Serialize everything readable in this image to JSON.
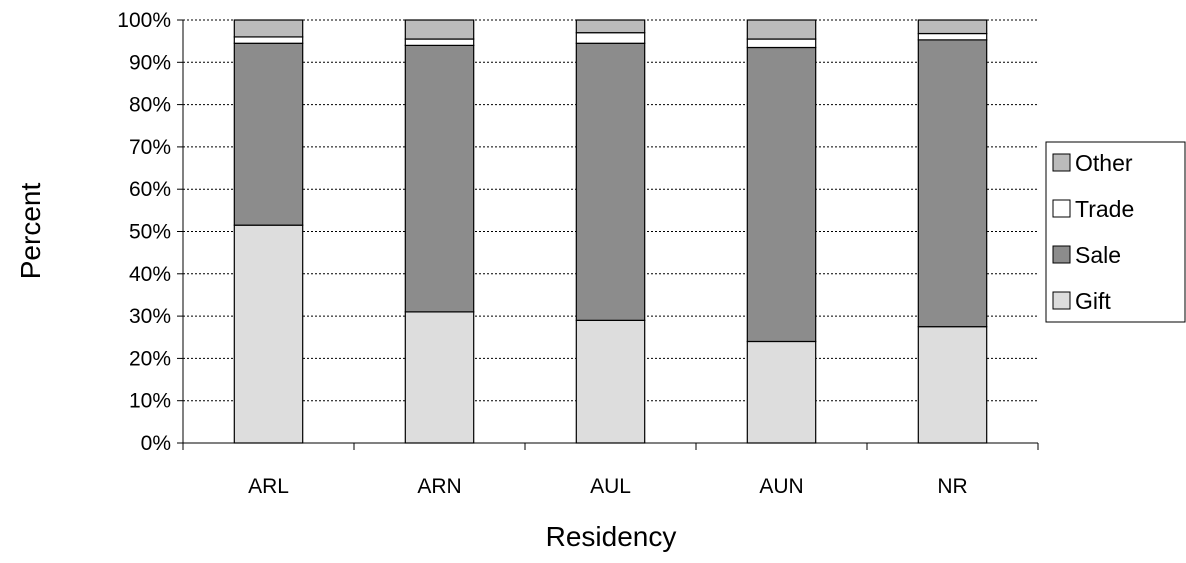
{
  "chart_data": {
    "type": "bar",
    "stacked": true,
    "normalized": true,
    "title": "",
    "xlabel": "Residency",
    "ylabel": "Percent",
    "ylim": [
      0,
      100
    ],
    "yticks": [
      "0%",
      "10%",
      "20%",
      "30%",
      "40%",
      "50%",
      "60%",
      "70%",
      "80%",
      "90%",
      "100%"
    ],
    "grid": true,
    "legend_position": "right",
    "categories": [
      "ARL",
      "ARN",
      "AUL",
      "AUN",
      "NR"
    ],
    "series": [
      {
        "name": "Gift",
        "color": "#dddddd",
        "values": [
          51.5,
          31.0,
          29.0,
          24.0,
          27.5
        ]
      },
      {
        "name": "Sale",
        "color": "#8c8c8c",
        "values": [
          43.0,
          63.0,
          65.5,
          69.5,
          67.8
        ]
      },
      {
        "name": "Trade",
        "color": "#ffffff",
        "values": [
          1.5,
          1.5,
          2.5,
          2.0,
          1.5
        ]
      },
      {
        "name": "Other",
        "color": "#bbbbbb",
        "values": [
          4.0,
          4.5,
          3.0,
          4.5,
          3.2
        ]
      }
    ],
    "legend_order": [
      "Other",
      "Trade",
      "Sale",
      "Gift"
    ]
  }
}
